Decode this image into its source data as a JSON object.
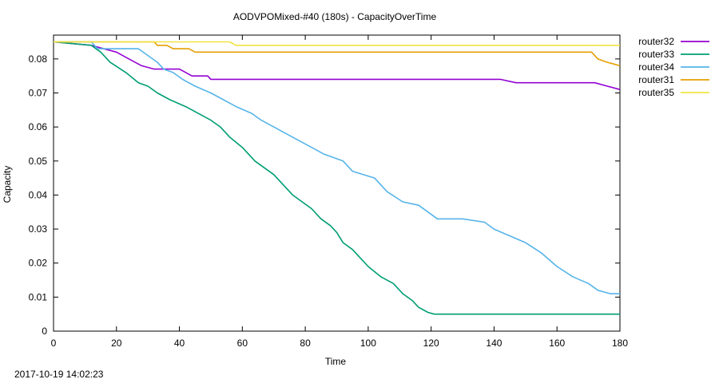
{
  "timestamp": "2017-10-19 14:02:23",
  "chart_data": {
    "type": "line",
    "title": "AODVPOMixed-#40 (180s) - CapacityOverTime",
    "xlabel": "Time",
    "ylabel": "Capacity",
    "xlim": [
      0,
      180
    ],
    "ylim": [
      0,
      0.087
    ],
    "xticks": [
      0,
      20,
      40,
      60,
      80,
      100,
      120,
      140,
      160,
      180
    ],
    "xtick_labels": [
      "0",
      "20",
      "40",
      "60",
      "80",
      "100",
      "120",
      "140",
      "160",
      "180"
    ],
    "yticks": [
      0,
      0.01,
      0.02,
      0.03,
      0.04,
      0.05,
      0.06,
      0.07,
      0.08
    ],
    "ytick_labels": [
      "0",
      "0.01",
      "0.02",
      "0.03",
      "0.04",
      "0.05",
      "0.06",
      "0.07",
      "0.08"
    ],
    "grid": false,
    "legend_position": "outside-top-right",
    "series": [
      {
        "name": "router32",
        "color": "#9400d3",
        "points": [
          [
            0,
            0.085
          ],
          [
            12,
            0.084
          ],
          [
            16,
            0.083
          ],
          [
            20,
            0.082
          ],
          [
            24,
            0.08
          ],
          [
            28,
            0.078
          ],
          [
            32,
            0.077
          ],
          [
            40,
            0.077
          ],
          [
            44,
            0.075
          ],
          [
            49,
            0.075
          ],
          [
            50,
            0.074
          ],
          [
            100,
            0.074
          ],
          [
            142,
            0.074
          ],
          [
            147,
            0.073
          ],
          [
            172,
            0.073
          ],
          [
            176,
            0.072
          ],
          [
            180,
            0.071
          ]
        ]
      },
      {
        "name": "router33",
        "color": "#009e73",
        "points": [
          [
            0,
            0.085
          ],
          [
            12,
            0.084
          ],
          [
            15,
            0.082
          ],
          [
            18,
            0.079
          ],
          [
            23,
            0.076
          ],
          [
            27,
            0.073
          ],
          [
            30,
            0.072
          ],
          [
            33,
            0.07
          ],
          [
            37,
            0.068
          ],
          [
            42,
            0.066
          ],
          [
            46,
            0.064
          ],
          [
            50,
            0.062
          ],
          [
            53,
            0.06
          ],
          [
            56,
            0.057
          ],
          [
            60,
            0.054
          ],
          [
            64,
            0.05
          ],
          [
            67,
            0.048
          ],
          [
            70,
            0.046
          ],
          [
            73,
            0.043
          ],
          [
            76,
            0.04
          ],
          [
            79,
            0.038
          ],
          [
            82,
            0.036
          ],
          [
            85,
            0.033
          ],
          [
            88,
            0.031
          ],
          [
            90,
            0.029
          ],
          [
            92,
            0.026
          ],
          [
            95,
            0.024
          ],
          [
            98,
            0.021
          ],
          [
            100,
            0.019
          ],
          [
            104,
            0.016
          ],
          [
            108,
            0.014
          ],
          [
            111,
            0.011
          ],
          [
            114,
            0.009
          ],
          [
            116,
            0.007
          ],
          [
            119,
            0.0055
          ],
          [
            121,
            0.005
          ],
          [
            180,
            0.005
          ]
        ]
      },
      {
        "name": "router34",
        "color": "#56b4e9",
        "points": [
          [
            0,
            0.085
          ],
          [
            12,
            0.085
          ],
          [
            14,
            0.083
          ],
          [
            27,
            0.083
          ],
          [
            30,
            0.081
          ],
          [
            33,
            0.079
          ],
          [
            35,
            0.077
          ],
          [
            38,
            0.076
          ],
          [
            41,
            0.074
          ],
          [
            45,
            0.072
          ],
          [
            50,
            0.07
          ],
          [
            54,
            0.068
          ],
          [
            58,
            0.066
          ],
          [
            63,
            0.064
          ],
          [
            66,
            0.062
          ],
          [
            70,
            0.06
          ],
          [
            74,
            0.058
          ],
          [
            78,
            0.056
          ],
          [
            82,
            0.054
          ],
          [
            86,
            0.052
          ],
          [
            92,
            0.05
          ],
          [
            95,
            0.047
          ],
          [
            102,
            0.045
          ],
          [
            106,
            0.041
          ],
          [
            111,
            0.038
          ],
          [
            116,
            0.037
          ],
          [
            119,
            0.035
          ],
          [
            122,
            0.033
          ],
          [
            130,
            0.033
          ],
          [
            137,
            0.032
          ],
          [
            140,
            0.03
          ],
          [
            145,
            0.028
          ],
          [
            150,
            0.026
          ],
          [
            155,
            0.023
          ],
          [
            160,
            0.019
          ],
          [
            165,
            0.016
          ],
          [
            170,
            0.014
          ],
          [
            173,
            0.012
          ],
          [
            177,
            0.011
          ],
          [
            180,
            0.011
          ]
        ]
      },
      {
        "name": "router31",
        "color": "#e69f00",
        "points": [
          [
            0,
            0.085
          ],
          [
            32,
            0.085
          ],
          [
            33,
            0.084
          ],
          [
            36,
            0.084
          ],
          [
            38,
            0.083
          ],
          [
            43,
            0.083
          ],
          [
            45,
            0.082
          ],
          [
            60,
            0.082
          ],
          [
            100,
            0.082
          ],
          [
            171,
            0.082
          ],
          [
            173,
            0.08
          ],
          [
            176,
            0.079
          ],
          [
            178,
            0.0785
          ],
          [
            180,
            0.078
          ]
        ]
      },
      {
        "name": "router35",
        "color": "#f0e442",
        "points": [
          [
            0,
            0.085
          ],
          [
            56,
            0.085
          ],
          [
            58,
            0.084
          ],
          [
            180,
            0.084
          ]
        ]
      }
    ]
  }
}
